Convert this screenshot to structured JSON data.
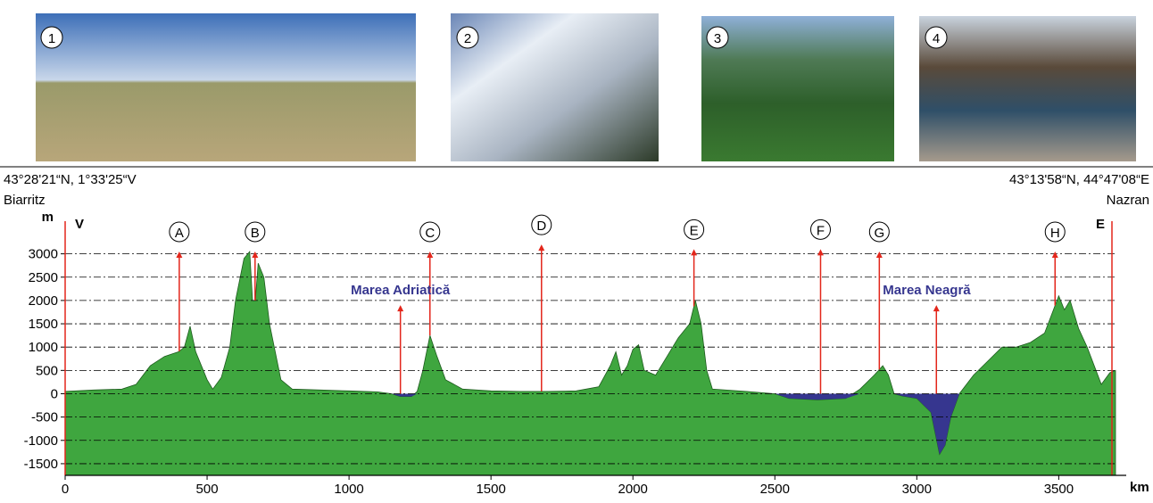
{
  "chart_data": {
    "type": "area",
    "photos": [
      "1",
      "2",
      "3",
      "4"
    ],
    "start_coords": "43°28'21“N, 1°33'25“V",
    "start_label": "Biarritz",
    "end_coords": "43°13'58“N, 44°47'08“E",
    "end_label": "Nazran",
    "y_unit": "m",
    "x_unit": "km",
    "west_label": "V",
    "east_label": "E",
    "color": "#3fa63f",
    "sea_color": "#36368f",
    "grid": true,
    "xlim": [
      0,
      3700
    ],
    "xticks": [
      0,
      500,
      1000,
      1500,
      2000,
      2500,
      3000,
      3500
    ],
    "ylim": [
      -1750,
      3700
    ],
    "yticks": [
      -1500,
      -1000,
      -500,
      0,
      500,
      1000,
      1500,
      2000,
      2500,
      3000
    ],
    "x": [
      0,
      100,
      200,
      250,
      300,
      350,
      400,
      420,
      440,
      460,
      500,
      520,
      550,
      580,
      600,
      630,
      650,
      660,
      670,
      680,
      700,
      720,
      740,
      760,
      800,
      900,
      1000,
      1100,
      1150,
      1180,
      1220,
      1240,
      1260,
      1285,
      1310,
      1340,
      1400,
      1500,
      1600,
      1700,
      1800,
      1880,
      1920,
      1940,
      1960,
      1980,
      2000,
      2020,
      2040,
      2080,
      2120,
      2160,
      2200,
      2220,
      2240,
      2260,
      2280,
      2400,
      2500,
      2550,
      2650,
      2750,
      2800,
      2850,
      2880,
      2900,
      2920,
      2950,
      3000,
      3050,
      3080,
      3100,
      3120,
      3150,
      3200,
      3250,
      3300,
      3350,
      3400,
      3450,
      3500,
      3520,
      3540,
      3570,
      3600,
      3650,
      3680,
      3700
    ],
    "values": [
      50,
      80,
      100,
      200,
      600,
      800,
      900,
      1000,
      1450,
      900,
      300,
      100,
      350,
      1000,
      2000,
      2900,
      3050,
      2000,
      2000,
      2800,
      2500,
      1500,
      900,
      300,
      100,
      80,
      60,
      40,
      0,
      -60,
      -60,
      50,
      500,
      1250,
      800,
      300,
      100,
      60,
      50,
      50,
      60,
      150,
      600,
      900,
      400,
      600,
      950,
      1050,
      500,
      400,
      800,
      1200,
      1500,
      2000,
      1500,
      500,
      100,
      50,
      0,
      -100,
      -130,
      -100,
      100,
      400,
      600,
      400,
      0,
      -50,
      -100,
      -400,
      -1300,
      -1100,
      -500,
      0,
      400,
      700,
      1000,
      1000,
      1100,
      1300,
      2100,
      1800,
      2000,
      1400,
      1000,
      200,
      450,
      500
    ],
    "markers": [
      {
        "label": "A",
        "x": 402,
        "y": 3050
      },
      {
        "label": "B",
        "x": 669,
        "y": 3050
      },
      {
        "label": "C",
        "x": 1285,
        "y": 3050
      },
      {
        "label": "D",
        "x": 1678,
        "y": 3200
      },
      {
        "label": "E",
        "x": 2215,
        "y": 3100
      },
      {
        "label": "F",
        "x": 2661,
        "y": 3100
      },
      {
        "label": "G",
        "x": 2868,
        "y": 3050
      },
      {
        "label": "H",
        "x": 3487,
        "y": 3050
      }
    ],
    "seas": [
      {
        "label": "Marea Adriatică",
        "x": 1181,
        "y": 1900
      },
      {
        "label": "Marea Neagră",
        "x": 3069,
        "y": 1900
      }
    ]
  }
}
